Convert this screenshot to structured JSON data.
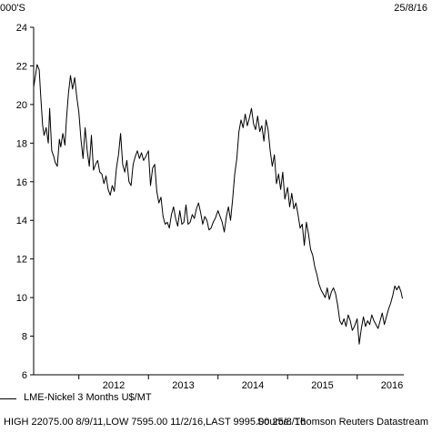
{
  "header": {
    "unit_label": "000'S",
    "date_label": "25/8/16"
  },
  "legend": {
    "series_label": "LME-Nickel 3 Months U$/MT"
  },
  "footer": {
    "summary": "HIGH 22075.00 8/9/11,LOW 7595.00 11/2/16,LAST 9995.00 25/8/16",
    "source": "Source: Thomson Reuters Datastream"
  },
  "colors": {
    "line": "#000000",
    "axis": "#000000",
    "background": "#ffffff"
  },
  "chart_data": {
    "type": "line",
    "title": "",
    "xlabel": "",
    "ylabel": "000'S",
    "ylim": [
      6,
      24
    ],
    "xlim": [
      2011.35,
      2016.67
    ],
    "yticks": [
      6,
      8,
      10,
      12,
      14,
      16,
      18,
      20,
      22,
      24
    ],
    "xtick_labels": [
      "2012",
      "2013",
      "2014",
      "2015",
      "2016"
    ],
    "grid": false,
    "series": [
      {
        "name": "LME-Nickel 3 Months U$/MT",
        "x": [
          2011.35,
          2011.38,
          2011.4,
          2011.43,
          2011.45,
          2011.48,
          2011.5,
          2011.53,
          2011.56,
          2011.58,
          2011.61,
          2011.64,
          2011.66,
          2011.69,
          2011.72,
          2011.74,
          2011.77,
          2011.8,
          2011.82,
          2011.85,
          2011.88,
          2011.91,
          2011.94,
          2011.97,
          2012.0,
          2012.03,
          2012.06,
          2012.09,
          2012.12,
          2012.15,
          2012.18,
          2012.21,
          2012.24,
          2012.27,
          2012.3,
          2012.33,
          2012.36,
          2012.39,
          2012.42,
          2012.45,
          2012.48,
          2012.51,
          2012.54,
          2012.57,
          2012.6,
          2012.63,
          2012.66,
          2012.69,
          2012.72,
          2012.75,
          2012.78,
          2012.81,
          2012.84,
          2012.87,
          2012.9,
          2012.93,
          2012.96,
          2013.0,
          2013.03,
          2013.06,
          2013.09,
          2013.12,
          2013.15,
          2013.18,
          2013.21,
          2013.24,
          2013.27,
          2013.3,
          2013.33,
          2013.36,
          2013.39,
          2013.42,
          2013.45,
          2013.48,
          2013.51,
          2013.54,
          2013.57,
          2013.6,
          2013.63,
          2013.66,
          2013.69,
          2013.72,
          2013.75,
          2013.78,
          2013.81,
          2013.84,
          2013.87,
          2013.9,
          2013.93,
          2013.96,
          2014.0,
          2014.03,
          2014.06,
          2014.09,
          2014.12,
          2014.15,
          2014.18,
          2014.21,
          2014.24,
          2014.27,
          2014.3,
          2014.33,
          2014.36,
          2014.39,
          2014.42,
          2014.45,
          2014.48,
          2014.51,
          2014.54,
          2014.57,
          2014.6,
          2014.63,
          2014.66,
          2014.69,
          2014.72,
          2014.75,
          2014.78,
          2014.81,
          2014.84,
          2014.87,
          2014.9,
          2014.93,
          2014.96,
          2015.0,
          2015.03,
          2015.06,
          2015.09,
          2015.12,
          2015.15,
          2015.18,
          2015.21,
          2015.24,
          2015.27,
          2015.3,
          2015.33,
          2015.36,
          2015.39,
          2015.42,
          2015.45,
          2015.48,
          2015.51,
          2015.54,
          2015.57,
          2015.6,
          2015.63,
          2015.66,
          2015.69,
          2015.72,
          2015.75,
          2015.78,
          2015.81,
          2015.84,
          2015.87,
          2015.9,
          2015.93,
          2015.96,
          2016.0,
          2016.03,
          2016.06,
          2016.09,
          2016.12,
          2016.15,
          2016.18,
          2016.21,
          2016.24,
          2016.27,
          2016.3,
          2016.33,
          2016.36,
          2016.39,
          2016.42,
          2016.45,
          2016.48,
          2016.51,
          2016.54,
          2016.57,
          2016.6,
          2016.63,
          2016.65
        ],
        "y": [
          20.9,
          21.6,
          22.07,
          21.8,
          20.5,
          18.9,
          18.4,
          18.8,
          18.0,
          19.8,
          17.6,
          17.3,
          17.0,
          16.8,
          18.2,
          17.8,
          18.5,
          17.9,
          19.2,
          20.6,
          21.5,
          20.8,
          21.4,
          20.4,
          19.6,
          18.2,
          17.2,
          18.8,
          17.6,
          16.8,
          18.4,
          16.6,
          16.9,
          17.1,
          16.5,
          16.4,
          15.9,
          16.3,
          15.6,
          15.3,
          15.8,
          15.5,
          16.7,
          17.4,
          18.5,
          16.9,
          16.5,
          17.1,
          16.0,
          15.8,
          16.9,
          17.3,
          17.6,
          17.2,
          17.5,
          17.1,
          17.3,
          17.6,
          15.8,
          16.7,
          16.9,
          15.5,
          14.9,
          15.2,
          14.2,
          13.8,
          13.9,
          13.6,
          14.3,
          14.7,
          14.1,
          13.7,
          14.5,
          13.8,
          13.9,
          14.8,
          13.8,
          13.9,
          14.3,
          14.1,
          14.6,
          14.9,
          14.4,
          13.8,
          14.2,
          14.0,
          13.5,
          13.6,
          13.9,
          14.1,
          14.5,
          14.2,
          13.9,
          13.4,
          14.2,
          14.7,
          14.0,
          15.1,
          16.4,
          17.2,
          18.6,
          19.2,
          18.8,
          19.5,
          18.9,
          19.3,
          19.8,
          19.0,
          18.7,
          19.4,
          18.6,
          18.9,
          18.1,
          19.2,
          18.7,
          17.6,
          16.8,
          17.4,
          15.9,
          16.4,
          15.6,
          16.5,
          15.1,
          15.7,
          14.7,
          15.4,
          14.6,
          14.9,
          14.3,
          13.6,
          13.8,
          12.7,
          13.9,
          13.3,
          12.5,
          12.2,
          11.6,
          11.2,
          10.7,
          10.4,
          10.2,
          10.0,
          10.5,
          9.9,
          10.3,
          10.5,
          10.2,
          9.6,
          8.8,
          8.6,
          8.9,
          8.5,
          9.1,
          8.8,
          8.3,
          8.5,
          8.9,
          7.59,
          8.4,
          9.0,
          8.5,
          8.8,
          8.6,
          9.1,
          8.8,
          8.6,
          8.4,
          8.8,
          9.2,
          8.6,
          9.0,
          9.4,
          9.7,
          10.1,
          10.6,
          10.4,
          10.6,
          10.3,
          9.95
        ]
      }
    ]
  }
}
